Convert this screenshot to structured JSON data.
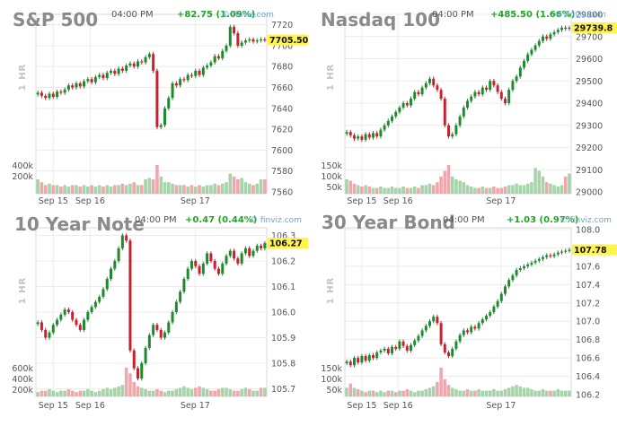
{
  "source_label": "© finviz.com",
  "timeframe_label": "1 HR",
  "colors": {
    "up": "#1e8a2e",
    "down": "#c8202e",
    "vol_up": "#a6d4a8",
    "vol_down": "#f0a6ad",
    "last": "#fff34d",
    "grid": "#ececec",
    "change": "#22a32a"
  },
  "chart_data": [
    {
      "type": "candlestick",
      "title": "S&P 500",
      "time": "04:00 PM",
      "change": "+82.75 (1.09%)",
      "last_label": "7705.50",
      "last_value": 7705.5,
      "ylim": [
        7560,
        7730
      ],
      "yticks": [
        7560,
        7580,
        7600,
        7620,
        7640,
        7660,
        7680,
        7700,
        7720
      ],
      "xticks": [
        "Sep 15",
        "Sep 16",
        "Sep 17"
      ],
      "volume_labels": [
        "400k",
        "200k"
      ],
      "closes": [
        7655,
        7652,
        7650,
        7654,
        7651,
        7656,
        7655,
        7658,
        7662,
        7660,
        7664,
        7661,
        7666,
        7668,
        7665,
        7670,
        7672,
        7669,
        7674,
        7676,
        7673,
        7678,
        7676,
        7681,
        7683,
        7680,
        7685,
        7684,
        7689,
        7692,
        7676,
        7622,
        7624,
        7640,
        7650,
        7664,
        7662,
        7668,
        7667,
        7672,
        7671,
        7676,
        7672,
        7679,
        7681,
        7684,
        7690,
        7688,
        7695,
        7700,
        7718,
        7712,
        7700,
        7703,
        7705,
        7706,
        7704,
        7705,
        7706,
        7705.5
      ],
      "volumes": [
        0.5,
        0.4,
        0.3,
        0.35,
        0.3,
        0.3,
        0.25,
        0.3,
        0.25,
        0.3,
        0.3,
        0.25,
        0.3,
        0.25,
        0.3,
        0.25,
        0.3,
        0.25,
        0.3,
        0.25,
        0.3,
        0.3,
        0.35,
        0.3,
        0.35,
        0.4,
        0.3,
        0.3,
        0.5,
        0.55,
        0.5,
        1.0,
        0.6,
        0.4,
        0.4,
        0.35,
        0.3,
        0.3,
        0.3,
        0.25,
        0.3,
        0.25,
        0.3,
        0.25,
        0.3,
        0.3,
        0.35,
        0.3,
        0.35,
        0.4,
        0.7,
        0.6,
        0.5,
        0.55,
        0.4,
        0.35,
        0.3,
        0.35,
        0.5,
        0.5
      ]
    },
    {
      "type": "candlestick",
      "title": "Nasdaq 100",
      "time": "04:00 PM",
      "change": "+485.50 (1.66%)",
      "last_label": "29739.8",
      "last_value": 29739.8,
      "ylim": [
        29000,
        29800
      ],
      "yticks": [
        29000,
        29100,
        29200,
        29300,
        29400,
        29500,
        29600,
        29700,
        29800
      ],
      "xticks": [
        "Sep 15",
        "Sep 16",
        "Sep 17"
      ],
      "volume_labels": [
        "150k",
        "100k",
        "50k"
      ],
      "closes": [
        29270,
        29255,
        29240,
        29250,
        29235,
        29260,
        29245,
        29265,
        29250,
        29280,
        29300,
        29320,
        29340,
        29360,
        29380,
        29400,
        29390,
        29420,
        29450,
        29440,
        29470,
        29490,
        29510,
        29480,
        29460,
        29420,
        29300,
        29250,
        29260,
        29300,
        29340,
        29380,
        29410,
        29430,
        29450,
        29440,
        29470,
        29460,
        29500,
        29480,
        29450,
        29420,
        29400,
        29460,
        29500,
        29520,
        29560,
        29590,
        29620,
        29640,
        29660,
        29680,
        29700,
        29690,
        29710,
        29720,
        29730,
        29740,
        29735,
        29739.8
      ],
      "volumes": [
        0.5,
        0.45,
        0.35,
        0.3,
        0.25,
        0.3,
        0.25,
        0.2,
        0.2,
        0.25,
        0.2,
        0.2,
        0.25,
        0.2,
        0.2,
        0.25,
        0.2,
        0.2,
        0.25,
        0.2,
        0.3,
        0.3,
        0.35,
        0.3,
        0.4,
        0.6,
        0.8,
        1.0,
        0.6,
        0.5,
        0.45,
        0.4,
        0.3,
        0.25,
        0.2,
        0.2,
        0.25,
        0.2,
        0.2,
        0.25,
        0.2,
        0.2,
        0.25,
        0.3,
        0.3,
        0.35,
        0.3,
        0.3,
        0.35,
        0.4,
        0.9,
        0.8,
        0.6,
        0.4,
        0.35,
        0.3,
        0.25,
        0.3,
        0.6,
        0.7
      ]
    },
    {
      "type": "candlestick",
      "title": "10 Year Note",
      "time": "04:00 PM",
      "change": "+0.47 (0.44%)",
      "last_label": "106.27",
      "last_value": 106.27,
      "ylim": [
        105.67,
        106.33
      ],
      "yticks": [
        105.7,
        105.8,
        105.9,
        106.0,
        106.1,
        106.2,
        106.3
      ],
      "xticks": [
        "Sep 15",
        "Sep 16",
        "Sep 17"
      ],
      "volume_labels": [
        "600k",
        "400k",
        "200k"
      ],
      "closes": [
        105.96,
        105.93,
        105.9,
        105.92,
        105.95,
        105.97,
        105.99,
        106.01,
        106.0,
        105.97,
        105.95,
        105.93,
        105.97,
        106.0,
        106.02,
        106.04,
        106.06,
        106.09,
        106.13,
        106.17,
        106.2,
        106.25,
        106.3,
        106.28,
        105.85,
        105.78,
        105.74,
        105.8,
        105.86,
        105.91,
        105.95,
        105.93,
        105.9,
        105.92,
        105.96,
        106.0,
        106.04,
        106.08,
        106.13,
        106.17,
        106.2,
        106.18,
        106.15,
        106.19,
        106.23,
        106.2,
        106.17,
        106.15,
        106.19,
        106.22,
        106.24,
        106.21,
        106.19,
        106.23,
        106.25,
        106.22,
        106.24,
        106.26,
        106.25,
        106.27
      ],
      "volumes": [
        0.15,
        0.2,
        0.2,
        0.25,
        0.2,
        0.15,
        0.2,
        0.2,
        0.25,
        0.2,
        0.15,
        0.2,
        0.2,
        0.25,
        0.2,
        0.15,
        0.2,
        0.25,
        0.3,
        0.25,
        0.3,
        0.35,
        0.4,
        1.0,
        0.8,
        0.5,
        0.35,
        0.3,
        0.25,
        0.2,
        0.2,
        0.25,
        0.2,
        0.15,
        0.2,
        0.2,
        0.25,
        0.3,
        0.35,
        0.3,
        0.25,
        0.3,
        0.35,
        0.3,
        0.25,
        0.2,
        0.2,
        0.25,
        0.3,
        0.3,
        0.25,
        0.2,
        0.2,
        0.25,
        0.3,
        0.25,
        0.2,
        0.2,
        0.3,
        0.3
      ]
    },
    {
      "type": "candlestick",
      "title": "30 Year Bond",
      "time": "04:00 PM",
      "change": "+1.03 (0.97%)",
      "last_label": "107.78",
      "last_value": 107.78,
      "ylim": [
        106.18,
        108.02
      ],
      "yticks": [
        106.2,
        106.4,
        106.6,
        106.8,
        107.0,
        107.2,
        107.4,
        107.6,
        107.8,
        108.0
      ],
      "xticks": [
        "Sep 15",
        "Sep 16",
        "Sep 17"
      ],
      "volume_labels": [
        "150k",
        "100k",
        "50k"
      ],
      "closes": [
        106.56,
        106.52,
        106.6,
        106.55,
        106.62,
        106.57,
        106.63,
        106.6,
        106.66,
        106.68,
        106.7,
        106.65,
        106.72,
        106.7,
        106.78,
        106.73,
        106.68,
        106.74,
        106.79,
        106.84,
        106.9,
        106.95,
        107.0,
        107.05,
        106.98,
        106.75,
        106.66,
        106.62,
        106.7,
        106.78,
        106.85,
        106.9,
        106.88,
        106.94,
        106.92,
        106.98,
        107.02,
        107.06,
        107.1,
        107.16,
        107.22,
        107.3,
        107.38,
        107.45,
        107.5,
        107.56,
        107.58,
        107.6,
        107.62,
        107.64,
        107.66,
        107.68,
        107.7,
        107.72,
        107.71,
        107.73,
        107.75,
        107.76,
        107.77,
        107.78
      ],
      "volumes": [
        0.3,
        0.45,
        0.3,
        0.25,
        0.2,
        0.15,
        0.2,
        0.2,
        0.15,
        0.2,
        0.15,
        0.2,
        0.2,
        0.15,
        0.2,
        0.2,
        0.25,
        0.2,
        0.15,
        0.2,
        0.2,
        0.25,
        0.3,
        0.35,
        0.5,
        1.0,
        0.6,
        0.4,
        0.3,
        0.25,
        0.2,
        0.2,
        0.25,
        0.2,
        0.2,
        0.25,
        0.2,
        0.2,
        0.2,
        0.25,
        0.2,
        0.2,
        0.25,
        0.3,
        0.35,
        0.4,
        0.35,
        0.3,
        0.3,
        0.25,
        0.2,
        0.2,
        0.25,
        0.2,
        0.2,
        0.2,
        0.25,
        0.2,
        0.2,
        0.2
      ]
    }
  ]
}
